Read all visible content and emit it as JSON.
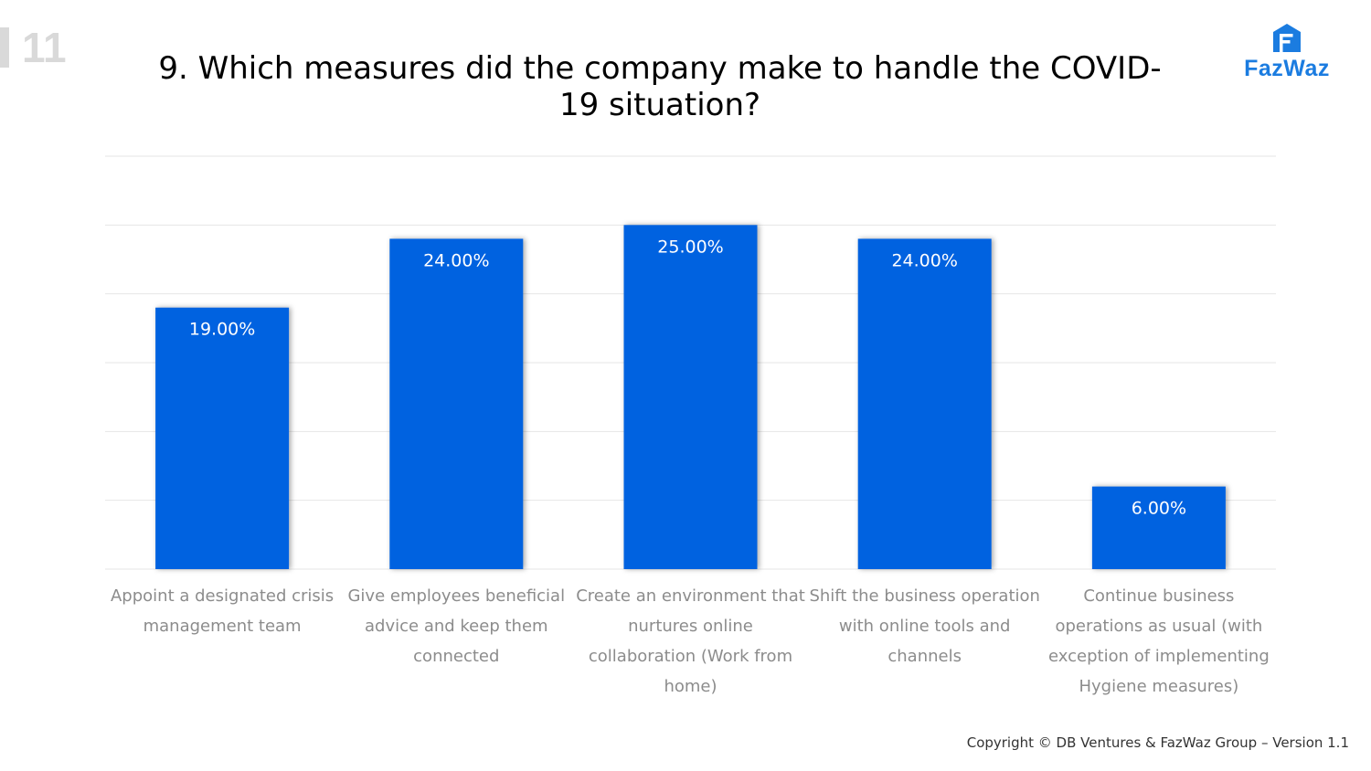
{
  "slide": {
    "page_number": "11",
    "title": "9. Which measures did the company make to handle the COVID-19 situation?",
    "logo_text": "FazWaz",
    "copyright": "Copyright © DB Ventures & FazWaz Group – Version 1.1"
  },
  "colors": {
    "bar": "#0062e0",
    "bar_label": "#ffffff",
    "gridline": "#e6e6e6",
    "axis_text": "#8c8c8c",
    "logo": "#1b7ce0",
    "page_marker": "#d9d9d9"
  },
  "logo_icon": "building-flag-icon",
  "chart_data": {
    "type": "bar",
    "title": "",
    "xlabel": "",
    "ylabel": "",
    "categories": [
      "Appoint a designated crisis management team",
      "Give employees beneficial advice and keep them connected",
      "Create an environment that nurtures online collaboration (Work from home)",
      "Shift the business operation with online tools and channels",
      "Continue business operations as usual (with exception of implementing Hygiene measures)"
    ],
    "values": [
      19,
      24,
      25,
      24,
      6
    ],
    "data_labels": [
      "19.00%",
      "24.00%",
      "25.00%",
      "24.00%",
      "6.00%"
    ],
    "ylim": [
      0,
      30
    ],
    "grid": true,
    "legend": "none"
  }
}
